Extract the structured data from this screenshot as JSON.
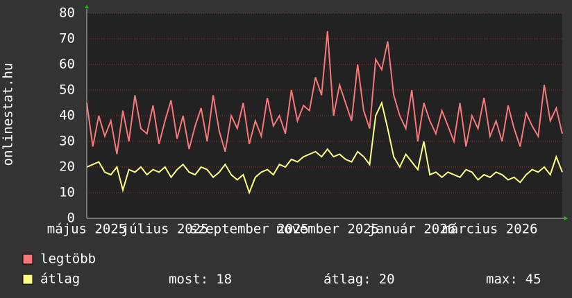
{
  "chart_data": {
    "type": "line",
    "y_label": "onlinestat.hu",
    "categories": [
      "május 2025",
      null,
      null,
      null,
      null,
      null,
      null,
      null,
      null,
      null,
      null,
      null,
      null,
      "július 2025",
      null,
      null,
      null,
      null,
      null,
      null,
      null,
      null,
      null,
      null,
      null,
      null,
      null,
      "szeptember 2025",
      null,
      null,
      null,
      null,
      null,
      null,
      null,
      null,
      null,
      null,
      null,
      null,
      "november 2025",
      null,
      null,
      null,
      null,
      null,
      null,
      null,
      null,
      null,
      null,
      null,
      null,
      null,
      "január 2026",
      null,
      null,
      null,
      null,
      null,
      null,
      null,
      null,
      null,
      null,
      null,
      null,
      "március 2026",
      null,
      null,
      null,
      null,
      null,
      null,
      null,
      null,
      null,
      null,
      null,
      null
    ],
    "series": [
      {
        "name": "legtöbb",
        "color": "#f87878",
        "values": [
          45,
          28,
          40,
          32,
          38,
          25,
          42,
          30,
          48,
          35,
          33,
          44,
          29,
          38,
          46,
          31,
          40,
          27,
          36,
          43,
          30,
          48,
          34,
          26,
          40,
          35,
          45,
          29,
          38,
          32,
          47,
          36,
          40,
          33,
          50,
          38,
          44,
          42,
          55,
          48,
          73,
          40,
          52,
          45,
          38,
          60,
          42,
          35,
          62,
          58,
          69,
          48,
          40,
          35,
          50,
          30,
          45,
          38,
          33,
          42,
          36,
          30,
          45,
          28,
          40,
          35,
          47,
          32,
          38,
          30,
          44,
          35,
          28,
          41,
          36,
          32,
          52,
          38,
          43,
          33
        ]
      },
      {
        "name": "átlag",
        "color": "#ffff80",
        "values": [
          20,
          21,
          22,
          18,
          17,
          20,
          11,
          19,
          18,
          20,
          17,
          19,
          18,
          20,
          16,
          19,
          21,
          18,
          17,
          20,
          19,
          16,
          18,
          21,
          17,
          15,
          17,
          10,
          16,
          18,
          19,
          17,
          21,
          20,
          23,
          22,
          24,
          25,
          26,
          24,
          27,
          24,
          25,
          23,
          22,
          26,
          24,
          21,
          40,
          45,
          35,
          24,
          20,
          25,
          22,
          19,
          30,
          17,
          18,
          16,
          18,
          17,
          16,
          19,
          18,
          15,
          17,
          16,
          18,
          17,
          15,
          16,
          14,
          17,
          19,
          18,
          20,
          17,
          24,
          18
        ]
      }
    ],
    "ylim": [
      0,
      80
    ],
    "yticks": [
      0,
      10,
      20,
      30,
      40,
      50,
      60,
      70,
      80
    ],
    "grid": true,
    "stats": [
      {
        "label": "most:",
        "value": 18
      },
      {
        "label": "átlag:",
        "value": 20
      },
      {
        "label": "max:",
        "value": 45
      }
    ]
  }
}
